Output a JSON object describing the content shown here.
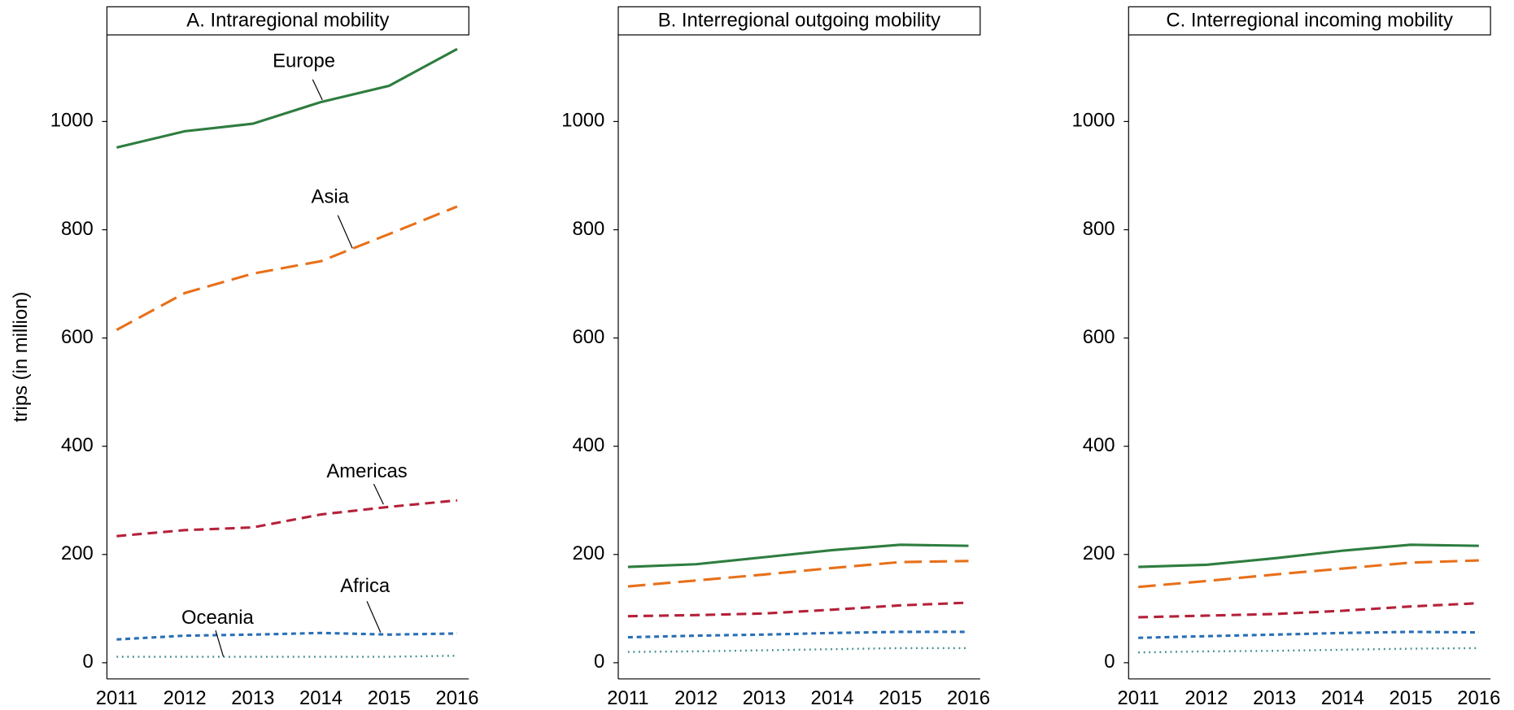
{
  "chart_data": [
    {
      "type": "line",
      "title": "A. Intraregional mobility",
      "ylabel": "trips (in million)",
      "categories": [
        "2011",
        "2012",
        "2013",
        "2014",
        "2015",
        "2016"
      ],
      "ylim": [
        -30,
        1160
      ],
      "yticks": [
        0,
        200,
        400,
        600,
        800,
        1000
      ],
      "series": [
        {
          "name": "Europe",
          "color": "#2e7d3f",
          "values": [
            952,
            982,
            996,
            1036,
            1066,
            1134
          ]
        },
        {
          "name": "Asia",
          "color": "#e8701a",
          "values": [
            615,
            683,
            719,
            742,
            792,
            843
          ]
        },
        {
          "name": "Americas",
          "color": "#b5213a",
          "values": [
            234,
            245,
            250,
            274,
            288,
            300
          ]
        },
        {
          "name": "Africa",
          "color": "#2a6fb5",
          "values": [
            43,
            50,
            52,
            55,
            52,
            54
          ]
        },
        {
          "name": "Oceania",
          "color": "#3a8a8a",
          "values": [
            11,
            11,
            11,
            11,
            11,
            13
          ]
        }
      ]
    },
    {
      "type": "line",
      "title": "B. Interregional outgoing mobility",
      "categories": [
        "2011",
        "2012",
        "2013",
        "2014",
        "2015",
        "2016"
      ],
      "ylim": [
        -30,
        1160
      ],
      "yticks": [
        0,
        200,
        400,
        600,
        800,
        1000
      ],
      "series": [
        {
          "color": "#2e7d3f",
          "values": [
            177,
            182,
            195,
            208,
            218,
            216
          ]
        },
        {
          "color": "#e8701a",
          "values": [
            141,
            152,
            163,
            175,
            186,
            188
          ]
        },
        {
          "color": "#b5213a",
          "values": [
            86,
            88,
            91,
            98,
            106,
            111
          ]
        },
        {
          "color": "#2a6fb5",
          "values": [
            47,
            50,
            52,
            55,
            57,
            57
          ]
        },
        {
          "color": "#3a8a8a",
          "values": [
            20,
            21,
            23,
            25,
            27,
            27
          ]
        }
      ]
    },
    {
      "type": "line",
      "title": "C. Interregional incoming mobility",
      "categories": [
        "2011",
        "2012",
        "2013",
        "2014",
        "2015",
        "2016"
      ],
      "ylim": [
        -30,
        1160
      ],
      "yticks": [
        0,
        200,
        400,
        600,
        800,
        1000
      ],
      "series": [
        {
          "color": "#2e7d3f",
          "values": [
            177,
            181,
            193,
            207,
            218,
            216
          ]
        },
        {
          "color": "#e8701a",
          "values": [
            140,
            151,
            163,
            174,
            185,
            189
          ]
        },
        {
          "color": "#b5213a",
          "values": [
            84,
            87,
            90,
            96,
            104,
            110
          ]
        },
        {
          "color": "#2a6fb5",
          "values": [
            46,
            49,
            52,
            55,
            57,
            56
          ]
        },
        {
          "color": "#3a8a8a",
          "values": [
            19,
            21,
            22,
            24,
            26,
            27
          ]
        }
      ]
    }
  ]
}
